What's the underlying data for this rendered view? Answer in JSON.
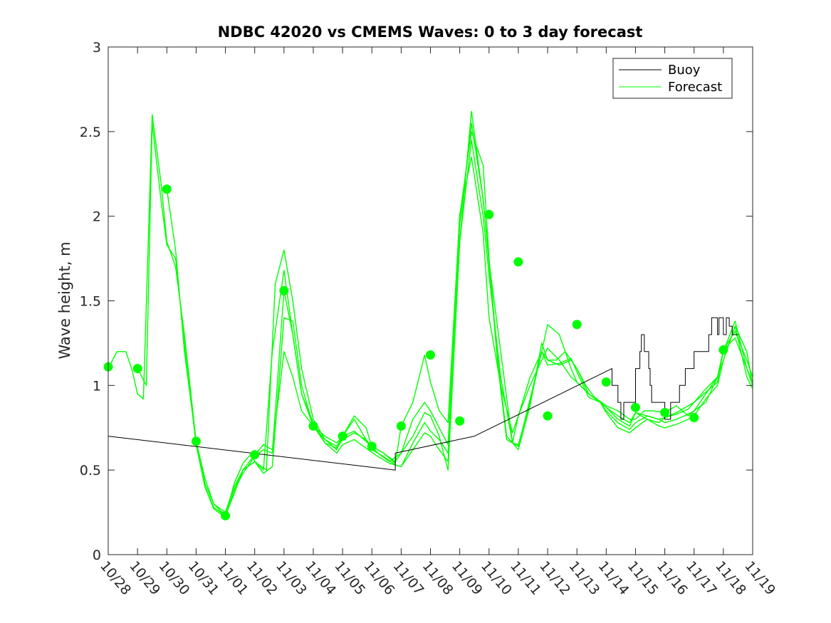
{
  "chart_data": {
    "type": "line",
    "title": "NDBC 42020 vs CMEMS Waves: 0 to 3 day forecast",
    "xlabel": "",
    "ylabel": "Wave height, m",
    "x_unit": "days since 10/28",
    "xlim": [
      0,
      22
    ],
    "ylim": [
      0,
      3
    ],
    "yticks": [
      0,
      0.5,
      1,
      1.5,
      2,
      2.5,
      3
    ],
    "ytick_labels": [
      "0",
      "0.5",
      "1",
      "1.5",
      "2",
      "2.5",
      "3"
    ],
    "xticks": [
      0,
      1,
      2,
      3,
      4,
      5,
      6,
      7,
      8,
      9,
      10,
      11,
      12,
      13,
      14,
      15,
      16,
      17,
      18,
      19,
      20,
      21,
      22
    ],
    "xtick_labels": [
      "10/28",
      "10/29",
      "10/30",
      "10/31",
      "11/01",
      "11/02",
      "11/03",
      "11/04",
      "11/05",
      "11/06",
      "11/07",
      "11/08",
      "11/09",
      "11/10",
      "11/11",
      "11/12",
      "11/13",
      "11/14",
      "11/15",
      "11/16",
      "11/17",
      "11/18",
      "11/19"
    ],
    "legend": {
      "location": "top-right",
      "entries": [
        "Buoy",
        "Forecast"
      ]
    },
    "colors": {
      "buoy": "#000000",
      "forecast": "#00ff00",
      "axes": "#262626"
    },
    "series": [
      {
        "name": "Buoy",
        "color": "#000000",
        "x": [
          0,
          9.8,
          9.8,
          12.5,
          17.2,
          17.2,
          17.4,
          17.4,
          17.5,
          17.5,
          17.6,
          17.6,
          18.0,
          18.0,
          18.15,
          18.15,
          18.2,
          18.2,
          18.3,
          18.3,
          18.45,
          18.45,
          18.5,
          18.5,
          18.55,
          18.55,
          18.6,
          18.6,
          19.0,
          19.0,
          19.2,
          19.2,
          19.5,
          19.5,
          19.7,
          19.7,
          19.9,
          19.9,
          20.0,
          20.0,
          20.5,
          20.5,
          20.6,
          20.6,
          20.8,
          20.8,
          20.85,
          20.85,
          21.0,
          21.0,
          21.1,
          21.1,
          21.2,
          21.2,
          21.3,
          21.3,
          21.35,
          21.35,
          21.5
        ],
        "y": [
          0.7,
          0.5,
          0.6,
          0.7,
          1.1,
          1.0,
          1.0,
          0.9,
          0.9,
          0.8,
          0.8,
          0.9,
          0.9,
          1.1,
          1.1,
          1.2,
          1.2,
          1.3,
          1.3,
          1.2,
          1.2,
          1.1,
          1.1,
          1.0,
          1.0,
          0.9,
          0.9,
          0.9,
          0.9,
          0.8,
          0.8,
          0.9,
          0.9,
          1.0,
          1.0,
          1.1,
          1.1,
          1.1,
          1.1,
          1.2,
          1.2,
          1.3,
          1.3,
          1.4,
          1.4,
          1.3,
          1.3,
          1.4,
          1.4,
          1.3,
          1.3,
          1.4,
          1.4,
          1.35,
          1.35,
          1.3,
          1.3,
          1.3,
          1.3
        ]
      },
      {
        "name": "Forecast",
        "color": "#00ff00",
        "x": [
          0,
          0.3,
          0.6,
          0.8,
          1.0,
          1.2,
          1.5,
          1.8,
          2.0,
          2.3,
          2.6,
          3.0,
          3.3,
          3.6,
          4.0,
          4.3,
          4.6,
          5.0,
          5.4,
          5.7,
          6.0,
          6.3,
          6.6,
          7.0,
          7.4,
          7.8,
          8.0,
          8.4,
          8.8,
          9.2,
          9.6,
          10.0,
          10.4,
          10.8,
          11.0,
          11.3,
          11.6,
          12.0,
          12.4,
          12.8,
          13.0,
          13.3,
          13.6,
          14.0,
          14.4,
          14.8,
          15.0,
          15.3,
          15.6,
          16.0,
          16.3,
          16.6,
          17.0,
          17.4,
          17.8,
          18.0,
          18.3,
          18.6,
          19.0,
          19.4,
          19.8,
          20.0,
          20.4,
          20.8,
          21.0,
          21.4,
          21.8,
          22.0
        ],
        "y": [
          1.1,
          1.2,
          1.2,
          1.1,
          0.95,
          0.92,
          2.6,
          2.2,
          1.85,
          1.7,
          1.3,
          0.67,
          0.4,
          0.27,
          0.22,
          0.38,
          0.5,
          0.55,
          0.5,
          1.6,
          1.8,
          1.5,
          1.1,
          0.8,
          0.68,
          0.62,
          0.7,
          0.73,
          0.67,
          0.6,
          0.55,
          0.6,
          0.8,
          0.9,
          0.85,
          0.75,
          0.65,
          2.0,
          2.5,
          2.3,
          1.75,
          1.15,
          0.7,
          0.62,
          0.88,
          1.25,
          1.15,
          1.15,
          1.2,
          1.1,
          1.0,
          0.93,
          0.88,
          0.85,
          0.8,
          0.8,
          0.85,
          0.85,
          0.84,
          0.88,
          0.82,
          0.85,
          0.9,
          1.05,
          1.15,
          1.35,
          1.2,
          1.0
        ]
      },
      {
        "name": "Forecast",
        "color": "#00ff00",
        "x": [
          1.0,
          1.3,
          1.5,
          1.8,
          2.0,
          2.3,
          2.6,
          3.0,
          3.3,
          3.6,
          4.0,
          4.3,
          4.6,
          4.9,
          5.0,
          5.3,
          5.6,
          6.0,
          6.3,
          6.6,
          7.0,
          7.4,
          7.8,
          8.0,
          8.4,
          8.8,
          9.2,
          9.6,
          10.0,
          10.4,
          10.8,
          11.0,
          11.3,
          11.6,
          12.0,
          12.4,
          12.8,
          13.0,
          13.3,
          13.6,
          14.0,
          14.4,
          14.8,
          15.0,
          15.4,
          15.8,
          16.0,
          16.4,
          16.8,
          17.0,
          17.4,
          17.8,
          18.0,
          18.4,
          18.8,
          19.0,
          19.4,
          19.8,
          20.0,
          20.4,
          20.8,
          21.0,
          21.4,
          21.8,
          22.0
        ],
        "y": [
          1.1,
          1.0,
          2.55,
          2.1,
          1.83,
          1.75,
          1.25,
          0.65,
          0.4,
          0.28,
          0.23,
          0.42,
          0.54,
          0.6,
          0.55,
          0.5,
          1.2,
          1.68,
          1.3,
          0.95,
          0.78,
          0.66,
          0.6,
          0.65,
          0.68,
          0.63,
          0.58,
          0.54,
          0.52,
          0.66,
          0.78,
          0.73,
          0.68,
          0.6,
          1.95,
          2.55,
          2.1,
          1.72,
          1.12,
          0.68,
          0.64,
          0.92,
          1.2,
          1.15,
          1.12,
          1.15,
          1.1,
          0.95,
          0.9,
          0.85,
          0.78,
          0.74,
          0.78,
          0.82,
          0.8,
          0.78,
          0.8,
          0.83,
          0.85,
          0.95,
          1.05,
          1.2,
          1.38,
          1.1,
          1.0
        ]
      },
      {
        "name": "Forecast",
        "color": "#00ff00",
        "x": [
          2.0,
          2.3,
          2.6,
          3.0,
          3.3,
          3.6,
          4.0,
          4.3,
          4.6,
          5.0,
          5.3,
          5.6,
          6.0,
          6.3,
          6.6,
          7.0,
          7.4,
          7.8,
          8.0,
          8.4,
          8.8,
          9.0,
          9.4,
          9.8,
          10.0,
          10.4,
          10.8,
          11.0,
          11.3,
          11.6,
          12.0,
          12.4,
          12.8,
          13.0,
          13.4,
          13.8,
          14.0,
          14.4,
          14.8,
          15.0,
          15.4,
          15.8,
          16.0,
          16.4,
          16.8,
          17.0,
          17.4,
          17.8,
          18.0,
          18.4,
          18.8,
          19.0,
          19.4,
          19.8,
          20.0,
          20.4,
          20.8,
          21.0,
          21.4,
          21.8,
          22.0
        ],
        "y": [
          2.16,
          1.8,
          1.2,
          0.67,
          0.42,
          0.3,
          0.25,
          0.4,
          0.5,
          0.55,
          0.48,
          0.52,
          1.4,
          1.38,
          1.0,
          0.76,
          0.66,
          0.63,
          0.68,
          0.72,
          0.68,
          0.62,
          0.58,
          0.53,
          0.52,
          0.62,
          0.72,
          0.7,
          0.62,
          0.55,
          1.85,
          2.45,
          2.0,
          1.65,
          1.05,
          0.66,
          0.65,
          0.9,
          1.2,
          1.12,
          1.13,
          1.16,
          1.08,
          0.93,
          0.9,
          0.84,
          0.75,
          0.72,
          0.75,
          0.8,
          0.76,
          0.75,
          0.77,
          0.8,
          0.82,
          0.92,
          1.0,
          1.15,
          1.35,
          1.05,
          0.98
        ]
      },
      {
        "name": "Forecast",
        "color": "#00ff00",
        "x": [
          3.0,
          3.3,
          3.6,
          4.0,
          4.3,
          4.6,
          5.0,
          5.3,
          5.6,
          6.0,
          6.3,
          6.6,
          7.0,
          7.4,
          7.8,
          8.0,
          8.4,
          8.8,
          9.0,
          9.4,
          9.8,
          10.0,
          10.4,
          10.8,
          11.0,
          11.3,
          11.6,
          12.0,
          12.4,
          12.8,
          13.0,
          13.4,
          13.8,
          14.0,
          14.4,
          14.8,
          15.0,
          15.4,
          15.8,
          16.0,
          16.4,
          16.8,
          17.0,
          17.4,
          17.8,
          18.0,
          18.4,
          18.8,
          19.0,
          19.4,
          19.8,
          20.0,
          20.4,
          20.8,
          21.0,
          21.4,
          21.8,
          22.0
        ],
        "y": [
          0.67,
          0.45,
          0.3,
          0.23,
          0.38,
          0.48,
          0.58,
          0.62,
          0.6,
          1.56,
          1.3,
          0.95,
          0.76,
          0.68,
          0.64,
          0.7,
          0.82,
          0.75,
          0.64,
          0.6,
          0.55,
          0.6,
          0.7,
          0.84,
          0.82,
          0.7,
          0.5,
          1.85,
          2.62,
          2.1,
          1.73,
          1.2,
          0.66,
          0.82,
          1.05,
          1.2,
          1.36,
          1.3,
          1.1,
          1.02,
          0.95,
          0.9,
          0.87,
          0.8,
          0.76,
          0.84,
          0.82,
          0.8,
          0.81,
          0.83,
          0.86,
          0.9,
          0.98,
          1.05,
          1.21,
          1.32,
          1.15,
          1.05
        ]
      },
      {
        "name": "Forecast",
        "color": "#00ff00",
        "x": [
          4.0,
          4.3,
          4.6,
          5.0,
          5.3,
          5.6,
          6.0,
          6.3,
          6.6,
          7.0,
          7.4,
          7.8,
          8.0,
          8.4,
          8.8,
          9.0,
          9.4,
          9.8,
          10.0,
          10.4,
          10.8,
          11.0,
          11.3,
          11.6,
          12.0,
          12.4,
          12.8,
          13.0,
          13.4,
          13.8,
          14.0,
          14.4,
          14.8,
          15.0,
          15.4,
          15.8,
          16.0,
          16.4,
          16.8,
          17.0,
          17.4,
          17.8,
          18.0,
          18.4,
          18.8,
          19.0,
          19.4,
          19.8,
          20.0,
          20.4,
          20.8,
          21.0,
          21.4,
          21.8,
          22.0
        ],
        "y": [
          0.23,
          0.36,
          0.5,
          0.59,
          0.65,
          0.62,
          1.2,
          1.05,
          0.85,
          0.76,
          0.7,
          0.66,
          0.7,
          0.8,
          0.68,
          0.64,
          0.6,
          0.54,
          0.76,
          0.9,
          1.18,
          1.02,
          0.85,
          0.78,
          2.01,
          2.35,
          1.9,
          1.4,
          1.0,
          0.72,
          0.82,
          1.0,
          1.15,
          1.22,
          1.15,
          1.05,
          1.02,
          0.95,
          0.9,
          0.87,
          0.82,
          0.78,
          0.84,
          0.8,
          0.78,
          0.81,
          0.84,
          0.88,
          0.9,
          0.96,
          1.02,
          1.21,
          1.28,
          1.1,
          1.02
        ]
      }
    ],
    "markers": {
      "name": "Forecast start points",
      "color": "#00ff00",
      "x": [
        0,
        1,
        2,
        3,
        4,
        5,
        6,
        7,
        8,
        9,
        10,
        11,
        12,
        13,
        14,
        15,
        16,
        17,
        18,
        19,
        20,
        21
      ],
      "y": [
        1.11,
        1.1,
        2.16,
        0.67,
        0.23,
        0.59,
        1.56,
        0.76,
        0.7,
        0.64,
        0.76,
        1.18,
        0.79,
        2.01,
        1.73,
        0.82,
        1.36,
        1.02,
        0.87,
        0.84,
        0.81,
        1.21
      ]
    }
  }
}
